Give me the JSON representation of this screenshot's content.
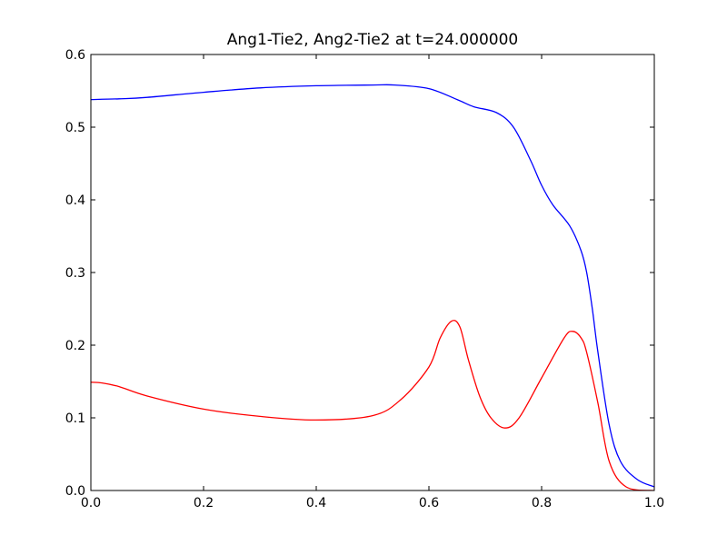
{
  "chart_data": {
    "type": "line",
    "title": "Ang1-Tie2, Ang2-Tie2 at t=24.000000",
    "xlabel": "",
    "ylabel": "",
    "xlim": [
      0.0,
      1.0
    ],
    "ylim": [
      0.0,
      0.6
    ],
    "grid": false,
    "x_ticks": [
      "0.0",
      "0.2",
      "0.4",
      "0.6",
      "0.8",
      "1.0"
    ],
    "y_ticks": [
      "0.0",
      "0.1",
      "0.2",
      "0.3",
      "0.4",
      "0.5",
      "0.6"
    ],
    "series": [
      {
        "color": "#0000ff",
        "x": [
          0.0,
          0.05,
          0.1,
          0.2,
          0.3,
          0.4,
          0.5,
          0.54,
          0.6,
          0.65,
          0.68,
          0.72,
          0.75,
          0.78,
          0.8,
          0.82,
          0.85,
          0.87,
          0.88,
          0.89,
          0.9,
          0.92,
          0.94,
          0.97,
          1.0
        ],
        "y": [
          0.538,
          0.539,
          0.541,
          0.548,
          0.554,
          0.557,
          0.558,
          0.558,
          0.553,
          0.538,
          0.528,
          0.52,
          0.5,
          0.455,
          0.42,
          0.393,
          0.364,
          0.33,
          0.3,
          0.25,
          0.19,
          0.09,
          0.04,
          0.015,
          0.005
        ]
      },
      {
        "color": "#ff0000",
        "x": [
          0.0,
          0.02,
          0.05,
          0.1,
          0.2,
          0.3,
          0.4,
          0.5,
          0.55,
          0.6,
          0.62,
          0.64,
          0.655,
          0.67,
          0.69,
          0.71,
          0.735,
          0.76,
          0.8,
          0.84,
          0.855,
          0.87,
          0.88,
          0.9,
          0.92,
          0.95,
          1.0
        ],
        "y": [
          0.149,
          0.148,
          0.143,
          0.13,
          0.112,
          0.102,
          0.097,
          0.103,
          0.125,
          0.17,
          0.21,
          0.233,
          0.225,
          0.18,
          0.13,
          0.1,
          0.086,
          0.1,
          0.155,
          0.21,
          0.219,
          0.21,
          0.19,
          0.12,
          0.04,
          0.005,
          0.0
        ]
      }
    ]
  }
}
